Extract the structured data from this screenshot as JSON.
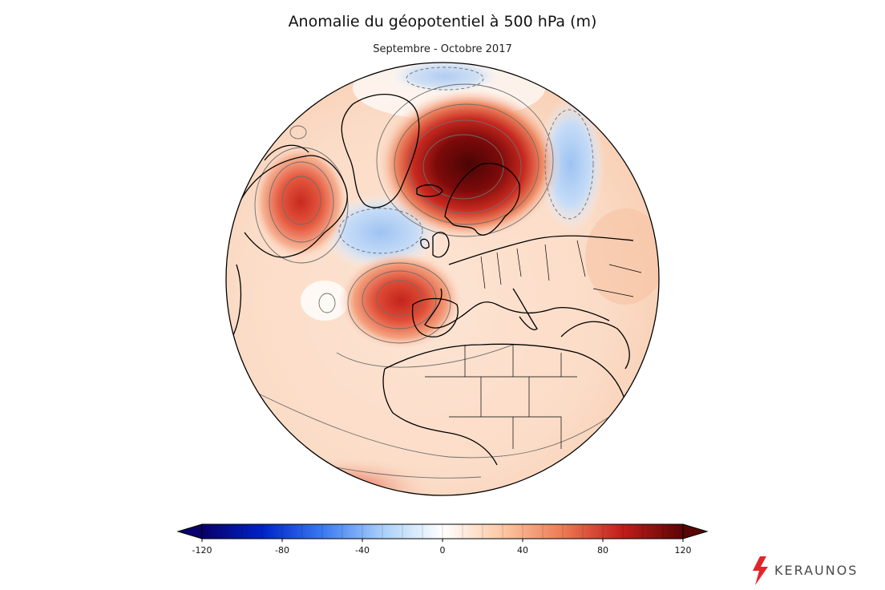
{
  "header": {
    "title": "Anomalie du géopotentiel à 500 hPa (m)",
    "subtitle": "Septembre - Octobre 2017"
  },
  "colorbar": {
    "ticks": [
      "-120",
      "-80",
      "-40",
      "0",
      "40",
      "80",
      "120"
    ],
    "range": [
      -120,
      120
    ],
    "colors": [
      "#08006b",
      "#0022c8",
      "#3a78f2",
      "#a9cff8",
      "#ffffff",
      "#fbc8a4",
      "#ec7a55",
      "#c21b1b",
      "#5a0505"
    ],
    "extend": "both"
  },
  "map": {
    "projection": "orthographic",
    "anomalies": [
      {
        "region": "Scandinavia / Norwegian Sea",
        "value": 120,
        "sign": "positive"
      },
      {
        "region": "Iberian Peninsula / Bay of Biscay",
        "value": 80,
        "sign": "positive"
      },
      {
        "region": "Canada / Hudson Bay",
        "value": 80,
        "sign": "positive"
      },
      {
        "region": "North Atlantic south of Greenland",
        "value": -30,
        "sign": "negative"
      },
      {
        "region": "Western Russia / Barents",
        "value": -30,
        "sign": "negative"
      }
    ]
  },
  "brand": {
    "name": "KERAUNOS",
    "accent": "#e3242b"
  }
}
